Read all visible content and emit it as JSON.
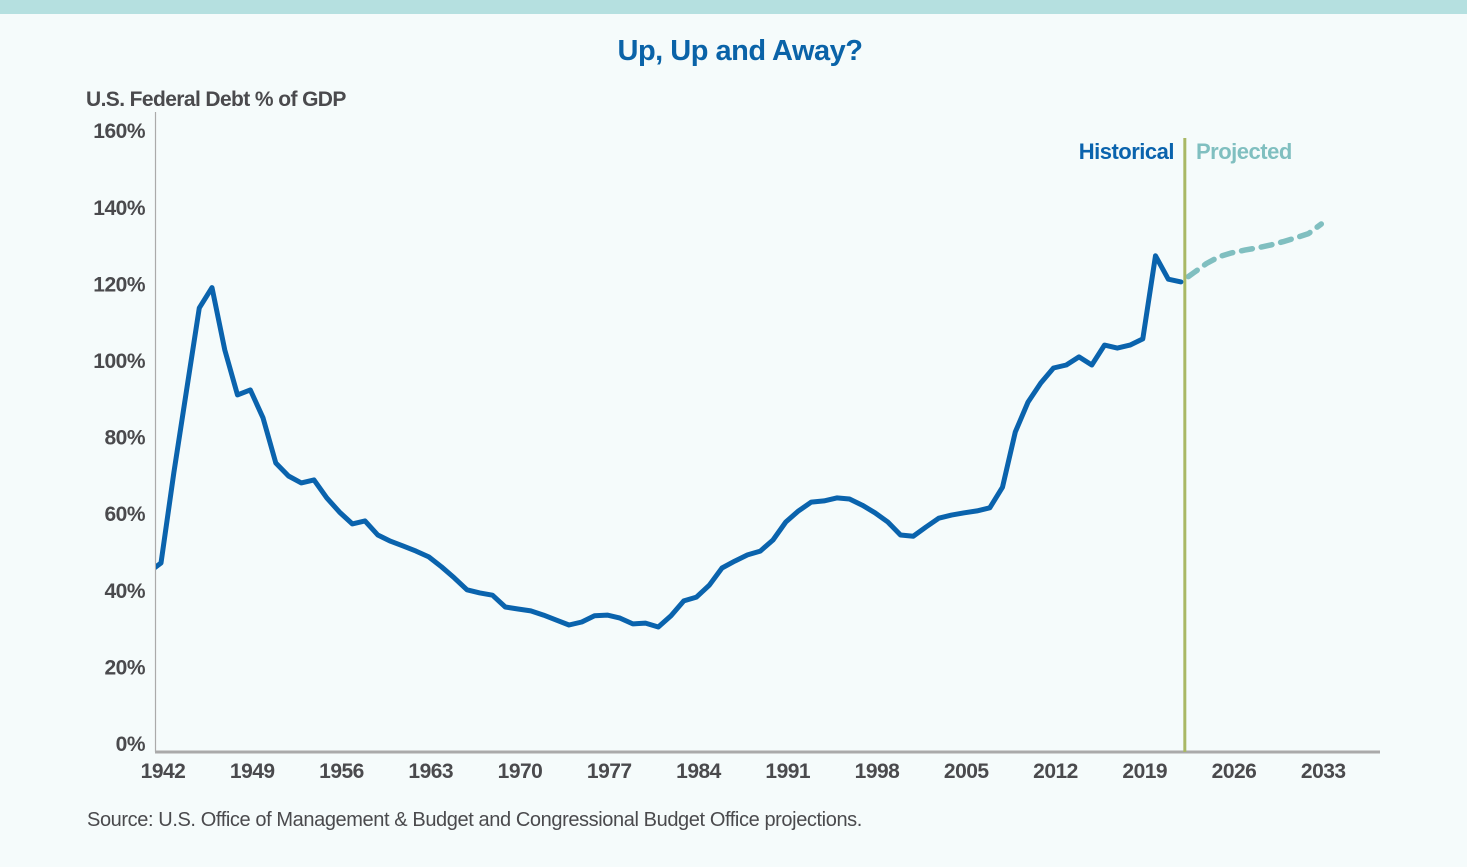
{
  "chart_data": {
    "type": "line",
    "title": "Up, Up and Away?",
    "ylabel": "U.S. Federal Debt % of GDP",
    "source": "Source: U.S. Office of Management & Budget and Congressional Budget Office projections.",
    "ylim": [
      0,
      160
    ],
    "yticks": [
      "0%",
      "20%",
      "40%",
      "60%",
      "80%",
      "100%",
      "120%",
      "140%",
      "160%"
    ],
    "ytick_values": [
      0,
      20,
      40,
      60,
      80,
      100,
      120,
      140,
      160
    ],
    "xticks": [
      "1942",
      "1949",
      "1956",
      "1963",
      "1970",
      "1977",
      "1984",
      "1991",
      "1998",
      "2005",
      "2012",
      "2019",
      "2026",
      "2033"
    ],
    "xlim": [
      1942,
      2033
    ],
    "grid": false,
    "divider_year": 2022.3,
    "segment_labels": {
      "historical": "Historical",
      "projected": "Projected"
    },
    "colors": {
      "title": "#0a63a8",
      "historical": "#0a63ad",
      "projected": "#80bfc0",
      "divider": "#a9b865",
      "axis": "#aaaaaa",
      "top_bar": "#b5e0e0",
      "background": "#f5fbfb"
    },
    "series": [
      {
        "name": "Historical",
        "style": "solid",
        "x": [
          1941,
          1942,
          1943,
          1944,
          1945,
          1946,
          1947,
          1948,
          1949,
          1950,
          1951,
          1952,
          1953,
          1954,
          1955,
          1956,
          1957,
          1958,
          1959,
          1960,
          1961,
          1962,
          1963,
          1964,
          1965,
          1966,
          1967,
          1968,
          1969,
          1970,
          1971,
          1972,
          1973,
          1974,
          1975,
          1976,
          1977,
          1978,
          1979,
          1980,
          1981,
          1982,
          1983,
          1984,
          1985,
          1986,
          1987,
          1988,
          1989,
          1990,
          1991,
          1992,
          1993,
          1994,
          1995,
          1996,
          1997,
          1998,
          1999,
          2000,
          2001,
          2002,
          2003,
          2004,
          2005,
          2006,
          2007,
          2008,
          2009,
          2010,
          2011,
          2012,
          2013,
          2014,
          2015,
          2016,
          2017,
          2018,
          2019,
          2020,
          2021,
          2022
        ],
        "values": [
          44.5,
          47.0,
          70.5,
          92.0,
          113.6,
          118.9,
          102.6,
          90.9,
          92.2,
          84.9,
          73.1,
          69.7,
          67.9,
          68.7,
          64.0,
          60.3,
          57.2,
          58.0,
          54.3,
          52.7,
          51.4,
          50.1,
          48.6,
          46.0,
          43.1,
          40.0,
          39.2,
          38.6,
          35.5,
          35.0,
          34.5,
          33.4,
          32.1,
          30.8,
          31.6,
          33.2,
          33.4,
          32.6,
          31.1,
          31.3,
          30.3,
          33.2,
          37.1,
          38.1,
          41.2,
          45.7,
          47.5,
          49.1,
          50.1,
          53.0,
          57.7,
          60.6,
          62.9,
          63.2,
          64.0,
          63.7,
          62.1,
          60.1,
          57.7,
          54.3,
          54.0,
          56.4,
          58.7,
          59.5,
          60.1,
          60.6,
          61.4,
          66.8,
          81.2,
          89.0,
          94.0,
          97.9,
          98.7,
          100.8,
          98.7,
          103.9,
          103.1,
          103.9,
          105.5,
          127.2,
          121.1,
          120.4
        ]
      },
      {
        "name": "Projected",
        "style": "dashed",
        "x": [
          2022,
          2023,
          2024,
          2025,
          2026,
          2027,
          2028,
          2029,
          2030,
          2031,
          2032,
          2033
        ],
        "values": [
          120.4,
          122.8,
          125.2,
          127.0,
          128.0,
          128.7,
          129.3,
          130.0,
          130.9,
          131.9,
          133.0,
          135.5
        ]
      }
    ]
  }
}
